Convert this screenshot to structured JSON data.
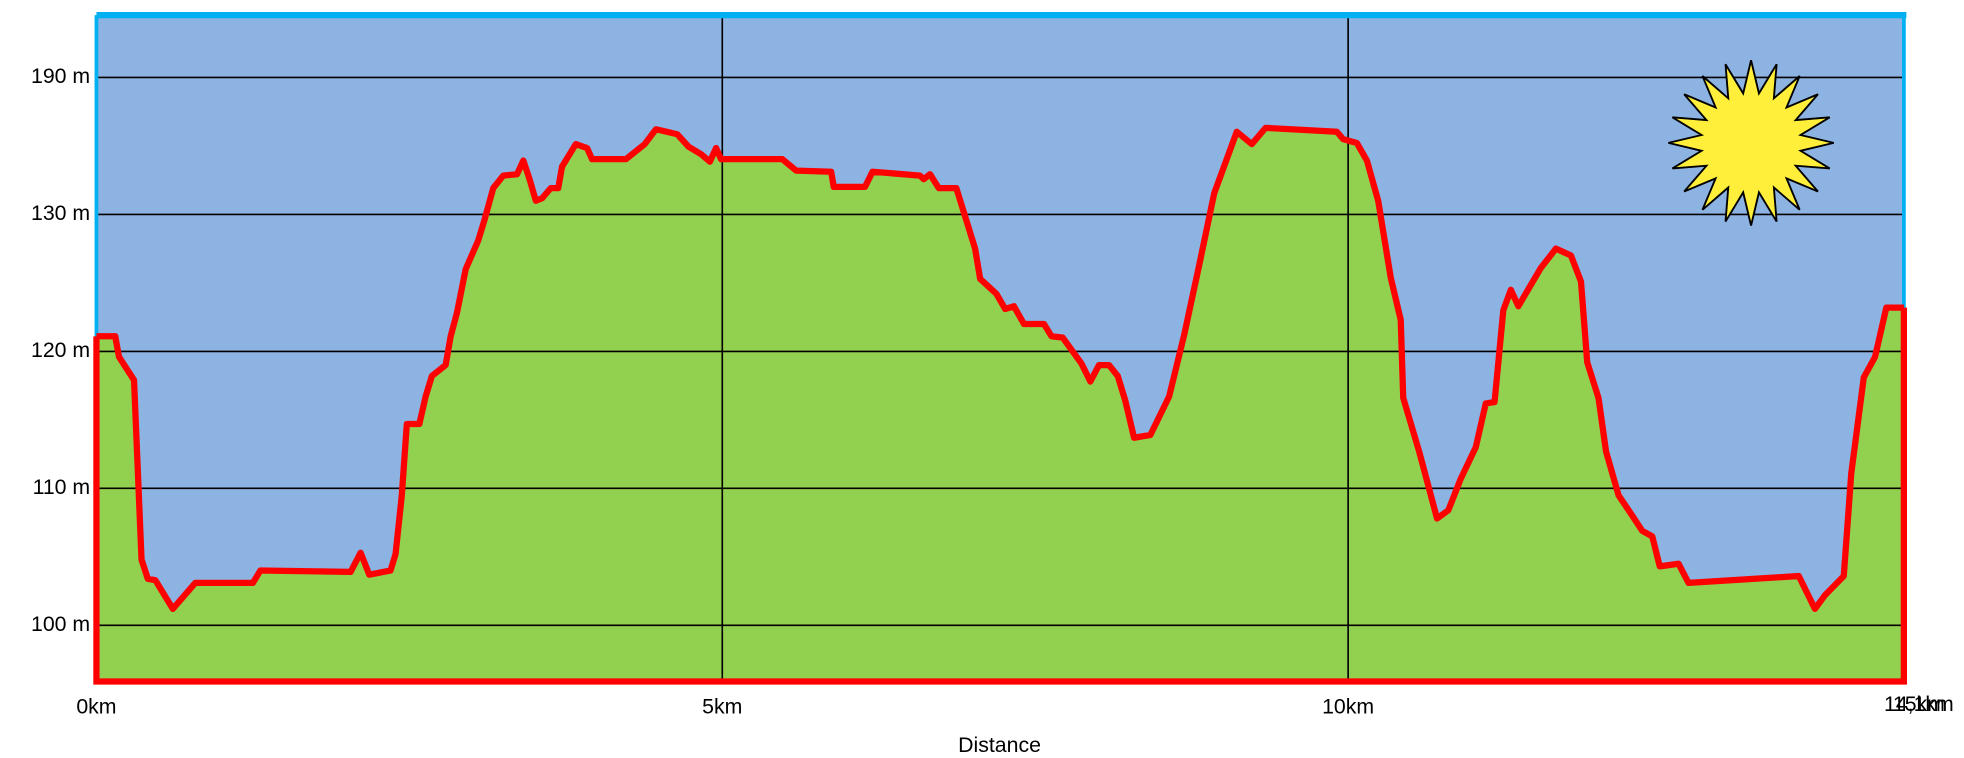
{
  "chart_data": {
    "type": "area",
    "x_label": "Distance",
    "y_scale": "tick-spaced",
    "grid": true,
    "fill_color": "#92d050",
    "line_color": "#ff0000",
    "sky_color": "#8db3e2",
    "xlim": [
      0,
      14.44
    ],
    "xticks": [
      {
        "value": 0,
        "label": "0km"
      },
      {
        "value": 5,
        "label": "5km"
      },
      {
        "value": 10,
        "label": "10km"
      }
    ],
    "end_labels": [
      "15km",
      "14,1km"
    ],
    "ylim": [
      95.9,
      217.3
    ],
    "yticks": [
      {
        "value": 100,
        "label": "100 m"
      },
      {
        "value": 110,
        "label": "110 m"
      },
      {
        "value": 120,
        "label": "120 m"
      },
      {
        "value": 130,
        "label": "130 m"
      },
      {
        "value": 190,
        "label": "190 m"
      }
    ],
    "x": [
      0.0,
      0.15,
      0.18,
      0.3,
      0.36,
      0.41,
      0.47,
      0.61,
      0.79,
      1.25,
      1.31,
      2.03,
      2.11,
      2.18,
      2.35,
      2.39,
      2.44,
      2.48,
      2.58,
      2.63,
      2.68,
      2.79,
      2.83,
      2.88,
      2.95,
      3.05,
      3.1,
      3.17,
      3.25,
      3.36,
      3.41,
      3.46,
      3.51,
      3.56,
      3.63,
      3.69,
      3.72,
      3.83,
      3.92,
      3.96,
      4.23,
      4.38,
      4.47,
      4.64,
      4.73,
      4.83,
      4.9,
      4.95,
      4.99,
      5.48,
      5.59,
      5.87,
      5.89,
      6.14,
      6.2,
      6.58,
      6.61,
      6.66,
      6.73,
      6.87,
      7.02,
      7.06,
      7.19,
      7.26,
      7.33,
      7.41,
      7.57,
      7.63,
      7.72,
      7.87,
      7.94,
      8.01,
      8.09,
      8.16,
      8.22,
      8.29,
      8.42,
      8.57,
      8.69,
      8.81,
      8.93,
      9.11,
      9.23,
      9.34,
      9.91,
      9.96,
      10.07,
      10.15,
      10.24,
      10.34,
      10.42,
      10.44,
      10.57,
      10.71,
      10.8,
      10.9,
      11.02,
      11.1,
      11.17,
      11.24,
      11.3,
      11.36,
      11.54,
      11.66,
      11.78,
      11.86,
      11.91,
      12.0,
      12.06,
      12.16,
      12.27,
      12.35,
      12.43,
      12.49,
      12.64,
      12.72,
      13.6,
      13.73,
      13.81,
      13.96,
      14.02,
      14.12,
      14.21,
      14.3,
      14.44
    ],
    "values": [
      121.1,
      121.1,
      119.6,
      117.9,
      104.8,
      103.4,
      103.3,
      101.2,
      103.1,
      103.1,
      104.0,
      103.9,
      105.3,
      103.7,
      104.0,
      105.2,
      109.5,
      114.7,
      114.7,
      116.7,
      118.2,
      119.0,
      121.1,
      122.8,
      126.0,
      128.1,
      129.6,
      141.5,
      147.0,
      147.6,
      153.6,
      145.4,
      136.0,
      137.1,
      141.5,
      141.5,
      150.9,
      160.8,
      159.1,
      154.2,
      154.2,
      160.8,
      167.3,
      165.1,
      159.7,
      156.4,
      153.1,
      159.1,
      154.2,
      154.2,
      149.2,
      148.7,
      142.1,
      142.1,
      148.7,
      147.0,
      145.4,
      147.6,
      141.5,
      141.5,
      127.5,
      125.3,
      124.2,
      123.1,
      123.3,
      122.0,
      122.0,
      121.1,
      121.0,
      119.1,
      117.8,
      119.0,
      119.0,
      118.2,
      116.4,
      113.7,
      113.9,
      116.7,
      121.2,
      126.3,
      139.3,
      166.2,
      160.8,
      167.9,
      166.2,
      163.0,
      161.3,
      153.6,
      136.0,
      125.4,
      122.3,
      116.6,
      112.6,
      107.8,
      108.4,
      110.7,
      113.0,
      116.2,
      116.3,
      123.0,
      124.5,
      123.3,
      126.1,
      127.5,
      127.0,
      125.1,
      119.2,
      116.6,
      112.7,
      109.5,
      108.0,
      106.9,
      106.5,
      104.3,
      104.5,
      103.1,
      103.6,
      101.2,
      102.2,
      103.6,
      111.1,
      118.1,
      119.6,
      123.2,
      123.2
    ]
  }
}
